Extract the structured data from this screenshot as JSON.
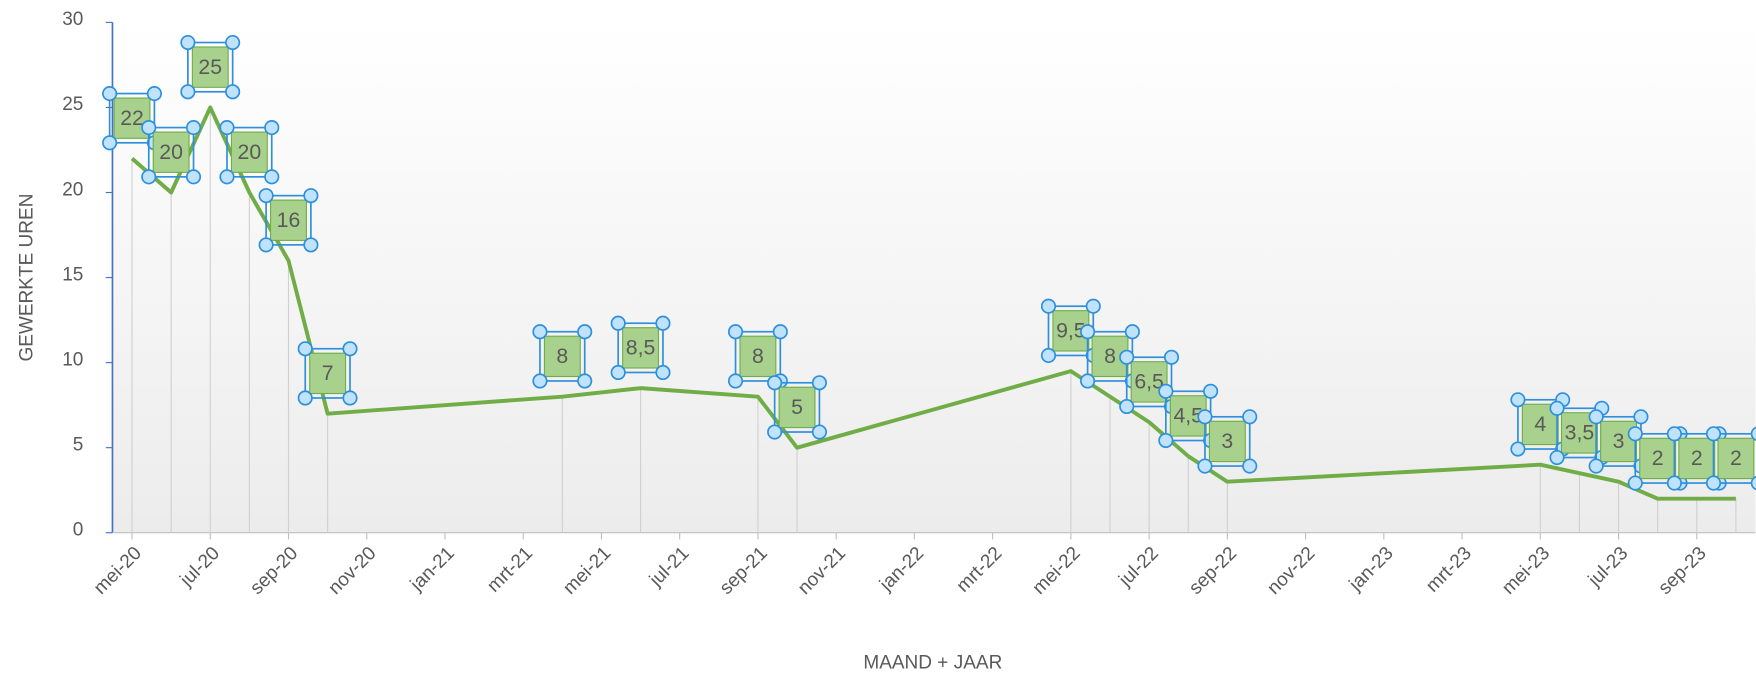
{
  "chart_data": {
    "type": "line",
    "x_label": "MAAND + JAAR",
    "y_label": "GEWERKTE UREN",
    "x": [
      "2020-05",
      "2020-06",
      "2020-07",
      "2020-08",
      "2020-09",
      "2020-10",
      "2021-04",
      "2021-06",
      "2021-09",
      "2021-10",
      "2022-05",
      "2022-06",
      "2022-07",
      "2022-08",
      "2022-09",
      "2023-05",
      "2023-06",
      "2023-07",
      "2023-08",
      "2023-09",
      "2023-10"
    ],
    "series": [
      {
        "name": "GEWERKTE UREN",
        "color": "#70ad47",
        "values": [
          22,
          20,
          25,
          20,
          16,
          7,
          8,
          8.5,
          8,
          5,
          9.5,
          8,
          6.5,
          4.5,
          3,
          4,
          3.5,
          3,
          2,
          2,
          2
        ],
        "value_labels": [
          "22",
          "20",
          "25",
          "20",
          "16",
          "7",
          "8",
          "8,5",
          "8",
          "5",
          "9,5",
          "8",
          "6,5",
          "4,5",
          "3",
          "4",
          "3,5",
          "3",
          "2",
          "2",
          "2"
        ]
      }
    ],
    "xlim": [
      "2020-05",
      "2023-10"
    ],
    "xticks": [
      {
        "value": "2020-05",
        "label": "mei-20"
      },
      {
        "value": "2020-07",
        "label": "jul-20"
      },
      {
        "value": "2020-09",
        "label": "sep-20"
      },
      {
        "value": "2020-11",
        "label": "nov-20"
      },
      {
        "value": "2021-01",
        "label": "jan-21"
      },
      {
        "value": "2021-03",
        "label": "mrt-21"
      },
      {
        "value": "2021-05",
        "label": "mei-21"
      },
      {
        "value": "2021-07",
        "label": "jul-21"
      },
      {
        "value": "2021-09",
        "label": "sep-21"
      },
      {
        "value": "2021-11",
        "label": "nov-21"
      },
      {
        "value": "2022-01",
        "label": "jan-22"
      },
      {
        "value": "2022-03",
        "label": "mrt-22"
      },
      {
        "value": "2022-05",
        "label": "mei-22"
      },
      {
        "value": "2022-07",
        "label": "jul-22"
      },
      {
        "value": "2022-09",
        "label": "sep-22"
      },
      {
        "value": "2022-11",
        "label": "nov-22"
      },
      {
        "value": "2023-01",
        "label": "jan-23"
      },
      {
        "value": "2023-03",
        "label": "mrt-23"
      },
      {
        "value": "2023-05",
        "label": "mei-23"
      },
      {
        "value": "2023-07",
        "label": "jul-23"
      },
      {
        "value": "2023-09",
        "label": "sep-23"
      }
    ],
    "ylim": [
      0,
      30
    ],
    "yticks": [
      0,
      5,
      10,
      15,
      20,
      25,
      30
    ],
    "drop_lines": true
  }
}
